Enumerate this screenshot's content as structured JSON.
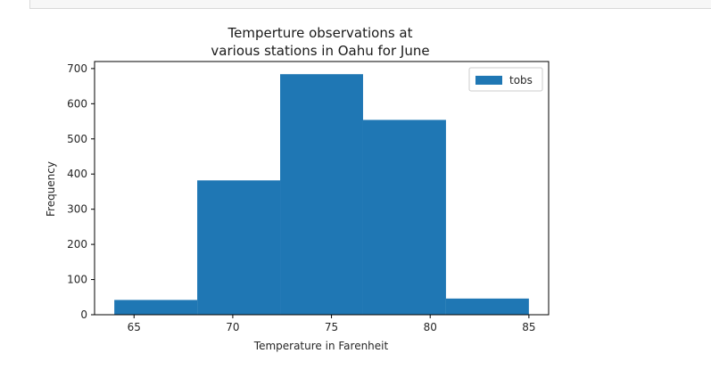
{
  "cell": {
    "frame": "notebook-output-cell"
  },
  "chart_data": {
    "type": "bar",
    "subtype": "histogram",
    "title_lines": [
      "Temperture observations at",
      "various stations in Oahu for June"
    ],
    "xlabel": "Temperature in Farenheit",
    "ylabel": "Frequency",
    "xlim": [
      63.0,
      86.0
    ],
    "ylim": [
      0,
      720
    ],
    "xticks": [
      65,
      70,
      75,
      80,
      85
    ],
    "yticks": [
      0,
      100,
      200,
      300,
      400,
      500,
      600,
      700
    ],
    "bins": [
      {
        "start": 64.0,
        "end": 68.2,
        "value": 42
      },
      {
        "start": 68.2,
        "end": 72.4,
        "value": 382
      },
      {
        "start": 72.4,
        "end": 76.6,
        "value": 684
      },
      {
        "start": 76.6,
        "end": 80.8,
        "value": 554
      },
      {
        "start": 80.8,
        "end": 85.0,
        "value": 46
      }
    ],
    "series": [
      {
        "name": "tobs",
        "color": "#1f77b4"
      }
    ],
    "legend": {
      "position": "top-right"
    },
    "grid": false
  }
}
